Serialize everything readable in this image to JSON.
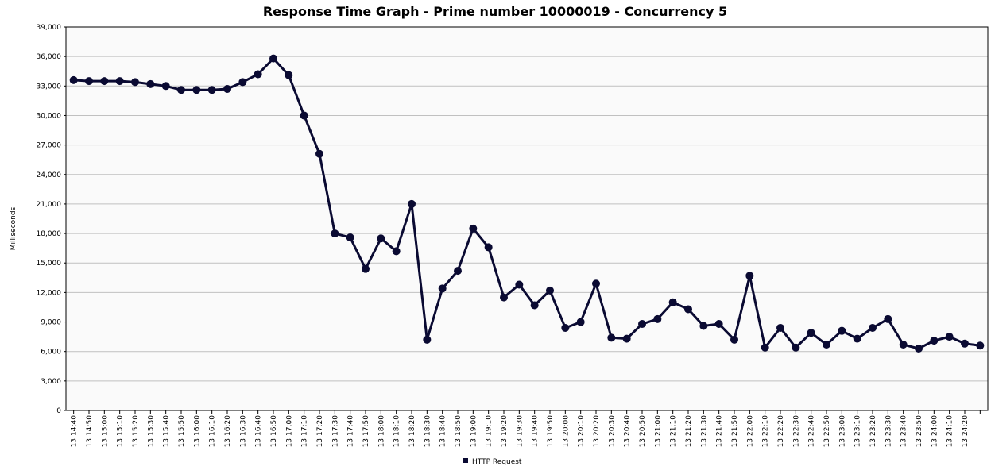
{
  "chart_data": {
    "type": "line",
    "title": "Response Time Graph - Prime number 10000019 - Concurrency 5",
    "y_label": "Milliseconds",
    "categories": [
      "13:14:40",
      "13:14:50",
      "13:15:00",
      "13:15:10",
      "13:15:20",
      "13:15:30",
      "13:15:40",
      "13:15:50",
      "13:16:00",
      "13:16:10",
      "13:16:20",
      "13:16:30",
      "13:16:40",
      "13:16:50",
      "13:17:00",
      "13:17:10",
      "13:17:20",
      "13:17:30",
      "13:17:40",
      "13:17:50",
      "13:18:00",
      "13:18:10",
      "13:18:20",
      "13:18:30",
      "13:18:40",
      "13:18:50",
      "13:19:00",
      "13:19:10",
      "13:19:20",
      "13:19:30",
      "13:19:40",
      "13:19:50",
      "13:20:00",
      "13:20:10",
      "13:20:20",
      "13:20:30",
      "13:20:40",
      "13:20:50",
      "13:21:00",
      "13:21:10",
      "13:21:20",
      "13:21:30",
      "13:21:40",
      "13:21:50",
      "13:22:00",
      "13:22:10",
      "13:22:20",
      "13:22:30",
      "13:22:40",
      "13:22:50",
      "13:23:00",
      "13:23:10",
      "13:23:20",
      "13:23:30",
      "13:23:40",
      "13:23:50",
      "13:24:00",
      "13:24:10",
      "13:24:20",
      null
    ],
    "series": [
      {
        "name": "HTTP Request",
        "color": "#0a0a32",
        "values": [
          33600,
          33500,
          33500,
          33500,
          33400,
          33200,
          33000,
          32600,
          32600,
          32600,
          32700,
          33400,
          34200,
          35800,
          34100,
          30000,
          26100,
          18000,
          17600,
          14400,
          17500,
          16200,
          21000,
          7200,
          12400,
          14200,
          18500,
          16600,
          11500,
          12800,
          10700,
          12200,
          8400,
          9000,
          12900,
          7400,
          7300,
          8800,
          9300,
          11000,
          10300,
          8600,
          8800,
          7200,
          13700,
          6400,
          8400,
          6400,
          7900,
          6700,
          8100,
          7300,
          8400,
          9300,
          6700,
          6300,
          7100,
          7500,
          6800,
          6600
        ]
      }
    ],
    "ylim": [
      0,
      39000
    ],
    "yticks": [
      0,
      {
        "value": 3000,
        "label": "3,000"
      },
      {
        "value": 6000,
        "label": "6,000"
      },
      {
        "value": 9000,
        "label": "9,000"
      },
      {
        "value": 12000,
        "label": "12,000"
      },
      {
        "value": 15000,
        "label": "15,000"
      },
      {
        "value": 18000,
        "label": "18,000"
      },
      {
        "value": 21000,
        "label": "21,000"
      },
      {
        "value": 24000,
        "label": "24,000"
      },
      {
        "value": 27000,
        "label": "27,000"
      },
      {
        "value": 30000,
        "label": "30,000"
      },
      {
        "value": 33000,
        "label": "33,000"
      },
      {
        "value": 36000,
        "label": "36,000"
      },
      {
        "value": 39000,
        "label": "39,000"
      }
    ],
    "grid": true
  }
}
